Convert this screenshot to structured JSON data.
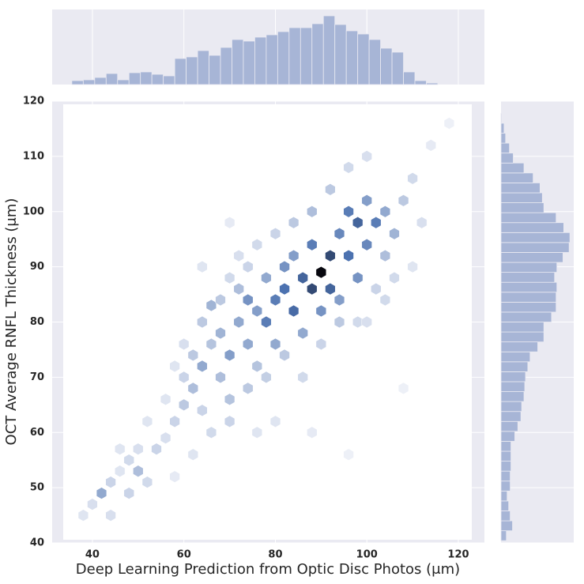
{
  "chart_data": {
    "type": "hexbin",
    "xlabel": "Deep Learning Prediction from Optic Disc Photos (μm)",
    "ylabel": "OCT Average RNFL Thickness  (μm)",
    "xlim": [
      31.2,
      125.7
    ],
    "ylim": [
      40,
      120
    ],
    "xticks": [
      40,
      60,
      80,
      100,
      120
    ],
    "yticks": [
      40,
      50,
      60,
      70,
      80,
      90,
      100,
      110,
      120
    ],
    "grid": true,
    "cmap": [
      "#f4f5fa",
      "#4c72b0",
      "#08080f"
    ],
    "count_max": 40,
    "cells": [
      [
        40,
        47,
        4
      ],
      [
        42,
        49,
        14
      ],
      [
        44,
        51,
        6
      ],
      [
        46,
        53,
        3
      ],
      [
        48,
        55,
        5
      ],
      [
        50,
        53,
        10
      ],
      [
        50,
        57,
        4
      ],
      [
        52,
        51,
        5
      ],
      [
        54,
        57,
        6
      ],
      [
        56,
        59,
        4
      ],
      [
        38,
        45,
        3
      ],
      [
        44,
        45,
        4
      ],
      [
        48,
        49,
        6
      ],
      [
        46,
        57,
        3
      ],
      [
        52,
        62,
        3
      ],
      [
        58,
        62,
        6
      ],
      [
        60,
        65,
        8
      ],
      [
        60,
        70,
        6
      ],
      [
        62,
        68,
        10
      ],
      [
        62,
        74,
        8
      ],
      [
        64,
        72,
        14
      ],
      [
        64,
        80,
        8
      ],
      [
        66,
        83,
        12
      ],
      [
        66,
        76,
        9
      ],
      [
        68,
        70,
        10
      ],
      [
        68,
        78,
        12
      ],
      [
        70,
        74,
        16
      ],
      [
        70,
        66,
        9
      ],
      [
        72,
        80,
        14
      ],
      [
        72,
        86,
        10
      ],
      [
        74,
        76,
        14
      ],
      [
        74,
        84,
        18
      ],
      [
        76,
        82,
        16
      ],
      [
        76,
        72,
        9
      ],
      [
        78,
        88,
        14
      ],
      [
        78,
        80,
        22
      ],
      [
        80,
        84,
        22
      ],
      [
        80,
        76,
        14
      ],
      [
        82,
        90,
        18
      ],
      [
        82,
        86,
        24
      ],
      [
        84,
        82,
        25
      ],
      [
        84,
        92,
        16
      ],
      [
        86,
        88,
        26
      ],
      [
        86,
        78,
        14
      ],
      [
        88,
        86,
        30
      ],
      [
        88,
        94,
        22
      ],
      [
        90,
        89,
        40
      ],
      [
        90,
        82,
        18
      ],
      [
        92,
        92,
        30
      ],
      [
        92,
        86,
        26
      ],
      [
        94,
        96,
        20
      ],
      [
        94,
        84,
        16
      ],
      [
        96,
        92,
        24
      ],
      [
        96,
        100,
        22
      ],
      [
        98,
        88,
        18
      ],
      [
        98,
        98,
        26
      ],
      [
        100,
        94,
        20
      ],
      [
        100,
        102,
        16
      ],
      [
        102,
        98,
        22
      ],
      [
        104,
        100,
        14
      ],
      [
        104,
        92,
        10
      ],
      [
        106,
        96,
        12
      ],
      [
        108,
        102,
        8
      ],
      [
        110,
        106,
        5
      ],
      [
        112,
        98,
        4
      ],
      [
        70,
        62,
        6
      ],
      [
        66,
        60,
        5
      ],
      [
        74,
        68,
        8
      ],
      [
        78,
        70,
        7
      ],
      [
        82,
        74,
        8
      ],
      [
        86,
        70,
        5
      ],
      [
        90,
        76,
        6
      ],
      [
        94,
        80,
        8
      ],
      [
        98,
        80,
        5
      ],
      [
        102,
        86,
        6
      ],
      [
        106,
        88,
        5
      ],
      [
        80,
        62,
        3
      ],
      [
        76,
        60,
        3
      ],
      [
        88,
        60,
        2
      ],
      [
        100,
        110,
        4
      ],
      [
        96,
        108,
        5
      ],
      [
        92,
        104,
        8
      ],
      [
        88,
        100,
        10
      ],
      [
        84,
        98,
        8
      ],
      [
        80,
        96,
        6
      ],
      [
        76,
        94,
        5
      ],
      [
        72,
        92,
        4
      ],
      [
        60,
        76,
        4
      ],
      [
        56,
        66,
        3
      ],
      [
        64,
        90,
        3
      ],
      [
        70,
        98,
        2
      ],
      [
        110,
        90,
        3
      ],
      [
        114,
        112,
        2
      ],
      [
        118,
        116,
        1
      ],
      [
        62,
        56,
        3
      ],
      [
        58,
        52,
        2
      ],
      [
        96,
        56,
        1
      ],
      [
        108,
        68,
        1
      ],
      [
        68,
        84,
        8
      ],
      [
        74,
        90,
        6
      ],
      [
        70,
        88,
        5
      ],
      [
        64,
        64,
        6
      ],
      [
        58,
        72,
        3
      ],
      [
        100,
        80,
        4
      ],
      [
        104,
        84,
        5
      ]
    ],
    "hist_color": "#a7b5d6",
    "x_hist": {
      "bins": [
        35.5,
        38,
        40.5,
        43,
        45.5,
        48,
        50.5,
        53,
        55.5,
        58,
        60.5,
        63,
        65.5,
        68,
        70.5,
        73,
        75.5,
        78,
        80.5,
        83,
        85.5,
        88,
        90.5,
        93,
        95.5,
        98,
        100.5,
        103,
        105.5,
        108,
        110.5,
        113,
        115.5
      ],
      "counts": [
        5,
        6,
        9,
        14,
        6,
        15,
        16,
        13,
        11,
        33,
        35,
        43,
        37,
        47,
        57,
        55,
        60,
        63,
        67,
        72,
        72,
        77,
        87,
        76,
        68,
        64,
        57,
        46,
        41,
        16,
        5,
        2
      ],
      "ylim": [
        0,
        95
      ]
    },
    "y_hist": {
      "bins": [
        40.4,
        42.2,
        44,
        45.8,
        47.6,
        49.4,
        51.2,
        53,
        54.8,
        56.6,
        58.4,
        60.2,
        62,
        63.8,
        65.6,
        67.4,
        69.2,
        71,
        72.8,
        74.6,
        76.4,
        78.2,
        80,
        81.8,
        83.6,
        85.4,
        87.2,
        89,
        90.8,
        92.6,
        94.4,
        96.2,
        98,
        99.8,
        101.6,
        103.4,
        105.2,
        107,
        108.8,
        110.6,
        112.4,
        114.2,
        116,
        117.8
      ],
      "counts": [
        7,
        15,
        12,
        10,
        8,
        12,
        12,
        13,
        13,
        13,
        18,
        22,
        26,
        27,
        30,
        31,
        32,
        35,
        38,
        48,
        56,
        56,
        66,
        72,
        72,
        73,
        70,
        73,
        81,
        89,
        90,
        82,
        72,
        56,
        54,
        51,
        42,
        30,
        16,
        11,
        6,
        4,
        1
      ],
      "xlim": [
        0,
        95
      ]
    }
  }
}
